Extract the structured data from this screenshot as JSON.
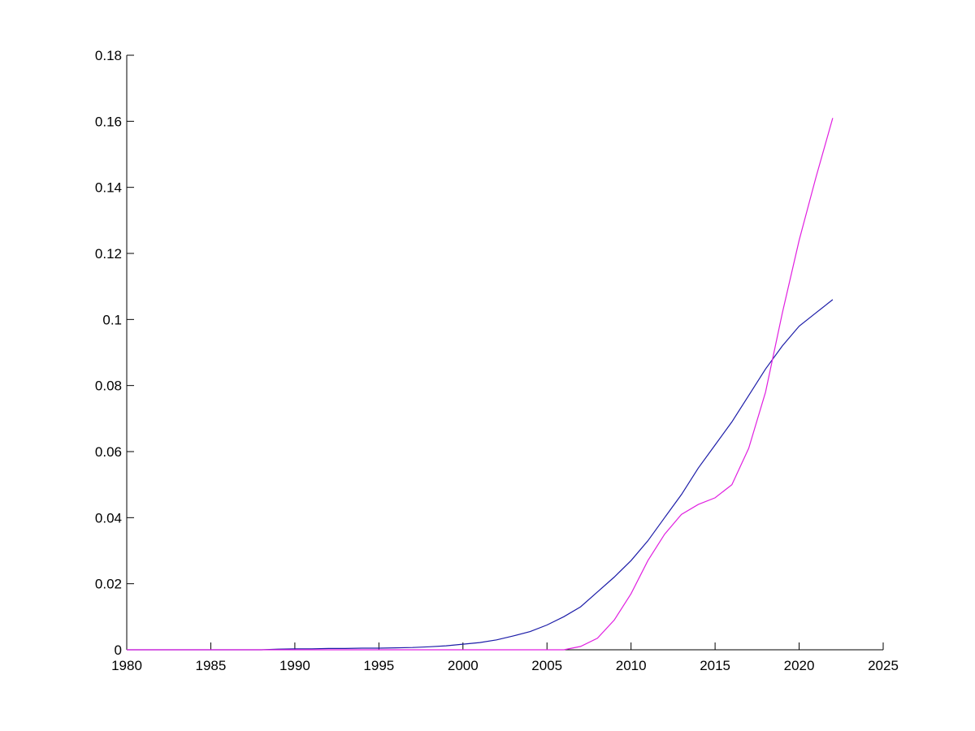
{
  "chart_data": {
    "type": "line",
    "title": "",
    "xlabel": "",
    "ylabel": "",
    "xlim": [
      1980,
      2025
    ],
    "ylim": [
      0,
      0.18
    ],
    "xticks": [
      "1980",
      "1985",
      "1990",
      "1995",
      "2000",
      "2005",
      "2010",
      "2015",
      "2020",
      "2025"
    ],
    "yticks": [
      "0",
      "0.02",
      "0.04",
      "0.06",
      "0.08",
      "0.1",
      "0.12",
      "0.14",
      "0.16",
      "0.18"
    ],
    "grid": false,
    "legend": "none",
    "x": [
      1980,
      1981,
      1982,
      1983,
      1984,
      1985,
      1986,
      1987,
      1988,
      1989,
      1990,
      1991,
      1992,
      1993,
      1994,
      1995,
      1996,
      1997,
      1998,
      1999,
      2000,
      2001,
      2002,
      2003,
      2004,
      2005,
      2006,
      2007,
      2008,
      2009,
      2010,
      2011,
      2012,
      2013,
      2014,
      2015,
      2016,
      2017,
      2018,
      2019,
      2020,
      2021,
      2022
    ],
    "series": [
      {
        "color": "#1c1ca8",
        "values": [
          0,
          0,
          0,
          0,
          0,
          0,
          0,
          0,
          0,
          0.0002,
          0.0003,
          0.0003,
          0.0004,
          0.0004,
          0.0005,
          0.0005,
          0.0006,
          0.0007,
          0.0009,
          0.0012,
          0.0017,
          0.0022,
          0.003,
          0.0042,
          0.0055,
          0.0075,
          0.01,
          0.013,
          0.0175,
          0.022,
          0.027,
          0.033,
          0.04,
          0.047,
          0.055,
          0.062,
          0.069,
          0.077,
          0.085,
          0.092,
          0.098,
          0.102,
          0.106
        ]
      },
      {
        "color": "#e020e0",
        "values": [
          0,
          0,
          0,
          0,
          0,
          0,
          0,
          0,
          0,
          0,
          0,
          0,
          0,
          0,
          0,
          0,
          0,
          0,
          0,
          0,
          0,
          0,
          0,
          0,
          0,
          0,
          0,
          0.001,
          0.0035,
          0.009,
          0.017,
          0.027,
          0.035,
          0.041,
          0.044,
          0.046,
          0.05,
          0.061,
          0.078,
          0.102,
          0.124,
          0.143,
          0.161
        ]
      }
    ]
  }
}
